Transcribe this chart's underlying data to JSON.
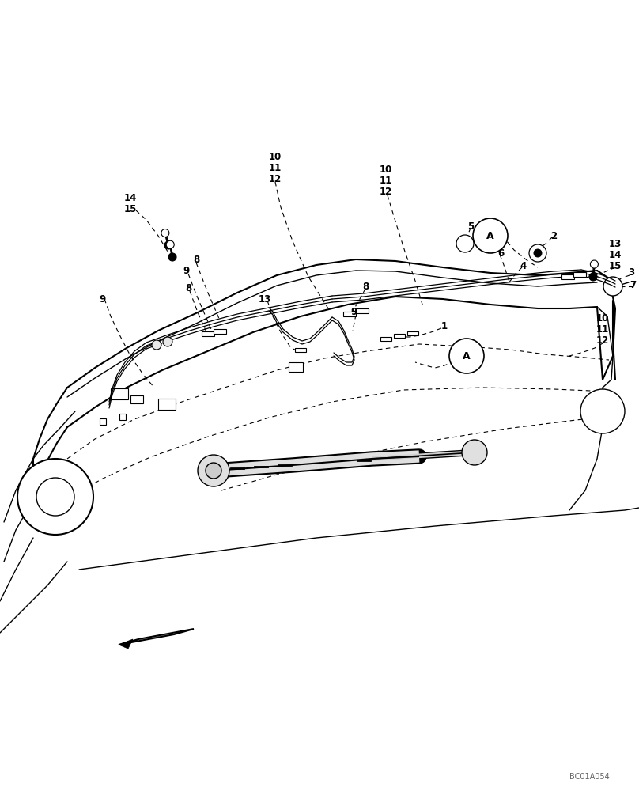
{
  "bg_color": "#ffffff",
  "line_color": "#000000",
  "fig_width": 8.08,
  "fig_height": 10.0,
  "dpi": 100,
  "watermark": "BC01A054",
  "label_fs": 8.5,
  "label_bold": true
}
